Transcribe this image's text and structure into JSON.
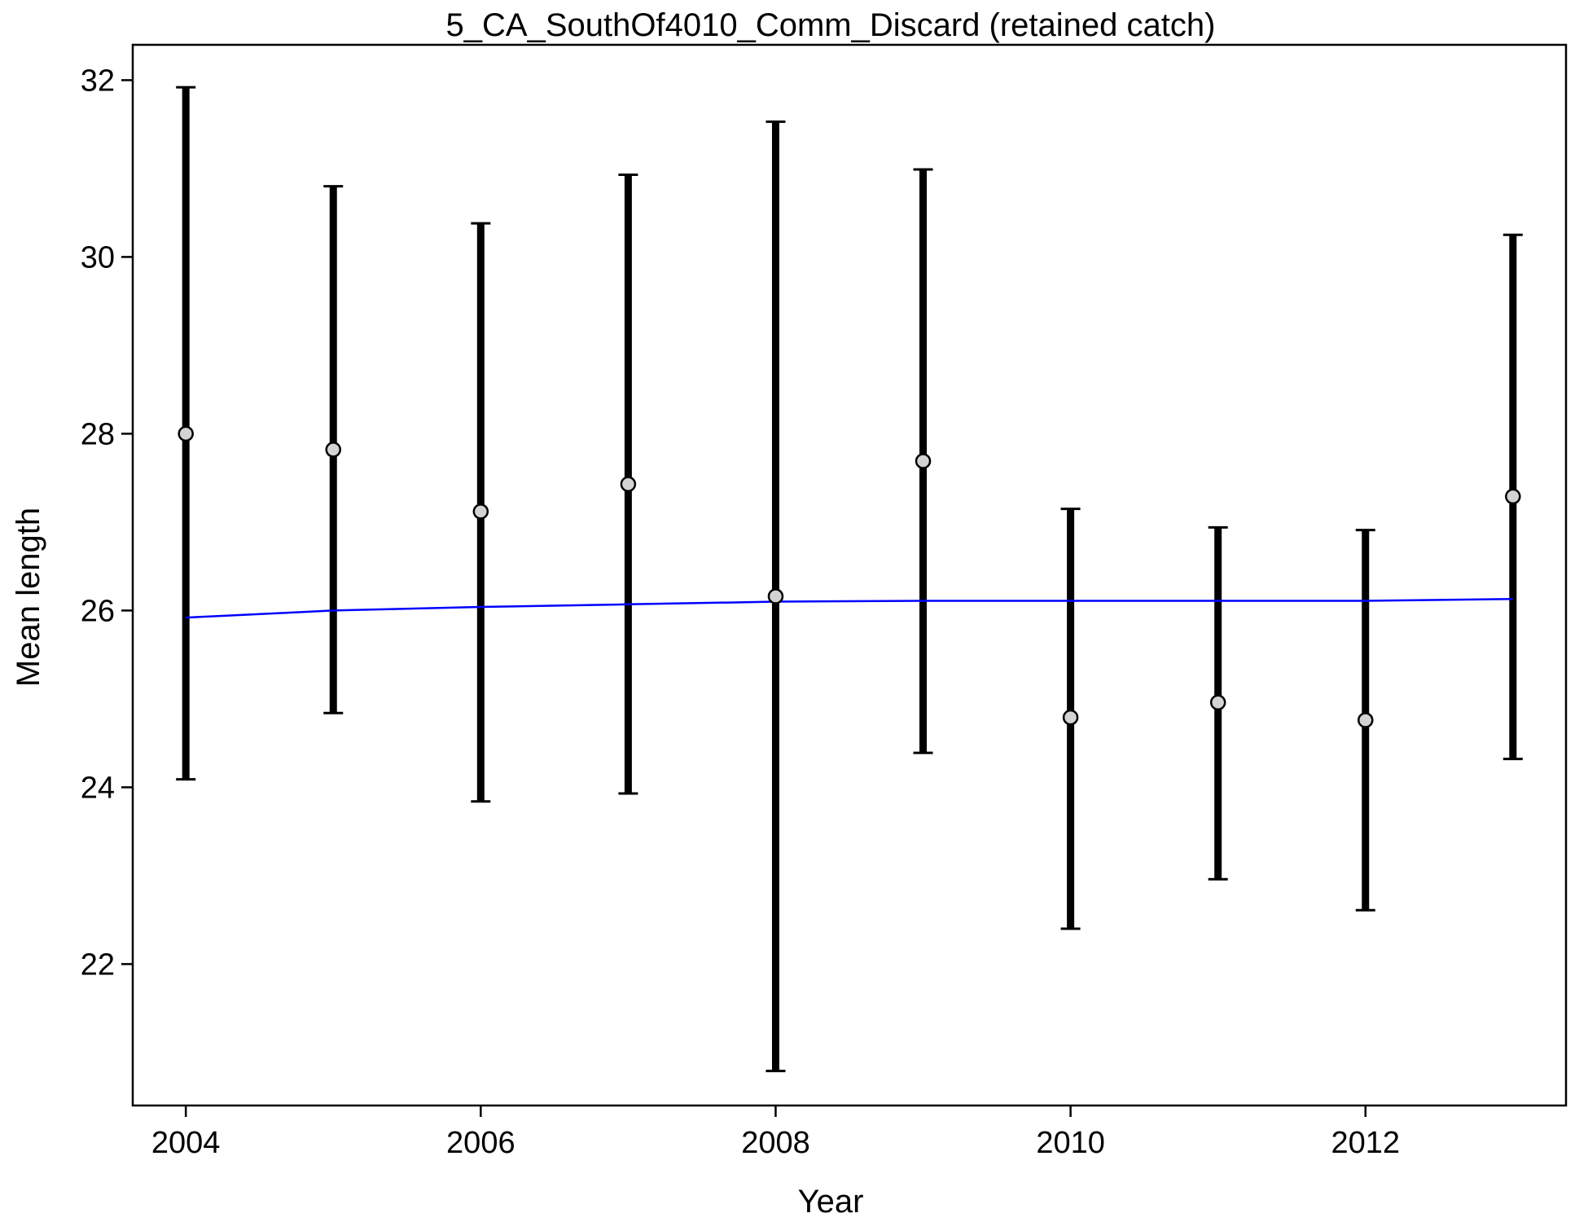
{
  "chart_data": {
    "type": "scatter",
    "title": "5_CA_SouthOf4010_Comm_Discard (retained catch)",
    "xlabel": "Year",
    "ylabel": "Mean length",
    "xlim": [
      2003.64,
      2013.36
    ],
    "ylim": [
      20.4,
      32.4
    ],
    "x_ticks": [
      2004,
      2006,
      2008,
      2010,
      2012
    ],
    "y_ticks": [
      22,
      24,
      26,
      28,
      30,
      32
    ],
    "grid": false,
    "legend": "none",
    "colors": {
      "error_bar": "#000000",
      "point_fill": "#d3d3d3",
      "point_stroke": "#000000",
      "fit_line": "#0000ff"
    },
    "series": [
      {
        "kind": "observed_with_interval",
        "x": [
          2004,
          2005,
          2006,
          2007,
          2008,
          2009,
          2010,
          2011,
          2012,
          2013
        ],
        "values": [
          28.0,
          27.82,
          27.12,
          27.43,
          26.16,
          27.69,
          24.79,
          24.96,
          24.76,
          27.29
        ],
        "lower": [
          24.09,
          24.84,
          23.84,
          23.93,
          20.79,
          24.39,
          22.4,
          22.96,
          22.61,
          24.32
        ],
        "upper": [
          31.92,
          30.8,
          30.38,
          30.93,
          31.53,
          30.99,
          27.15,
          26.94,
          26.91,
          30.25
        ]
      },
      {
        "kind": "expected_line",
        "x": [
          2004,
          2005,
          2006,
          2007,
          2008,
          2009,
          2010,
          2011,
          2012,
          2013
        ],
        "values": [
          25.92,
          26.0,
          26.04,
          26.07,
          26.1,
          26.11,
          26.11,
          26.11,
          26.11,
          26.13
        ]
      }
    ]
  }
}
